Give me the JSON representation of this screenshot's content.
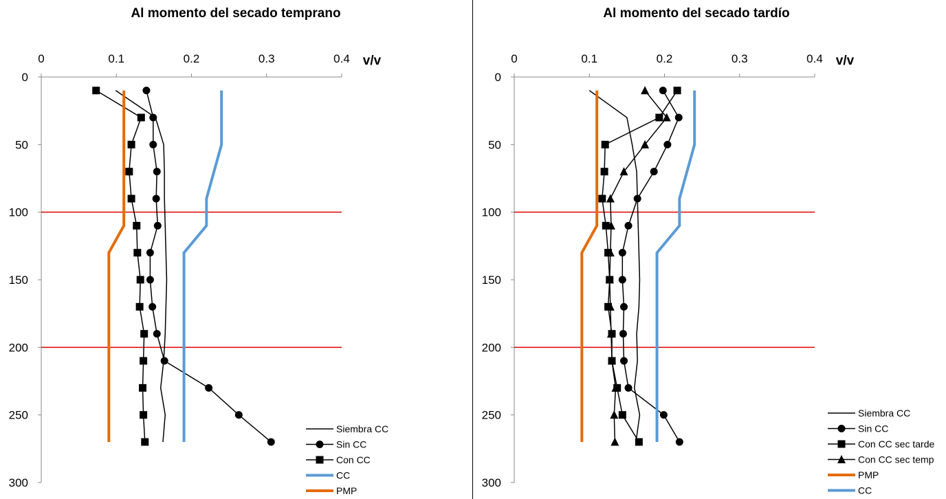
{
  "chart_data": [
    {
      "type": "line",
      "title": "Al momento del secado temprano",
      "x_unit_label": "v/v",
      "xlim": [
        0,
        0.4
      ],
      "ylim": [
        300,
        0
      ],
      "y_inverted": true,
      "x_axis_position": "top",
      "x_ticks": [
        "0",
        "0.1",
        "0.2",
        "0.3",
        "0.4"
      ],
      "y_ticks": [
        "0",
        "50",
        "100",
        "150",
        "200",
        "250",
        "300"
      ],
      "x_tick_values": [
        0,
        0.1,
        0.2,
        0.3,
        0.4
      ],
      "y_tick_values": [
        0,
        50,
        100,
        150,
        200,
        250,
        300
      ],
      "reference_lines_depth": [
        100,
        200
      ],
      "legend_position": "bottom-right",
      "series": [
        {
          "name": "Siembra CC",
          "marker": "none",
          "color": "#000000",
          "points": [
            [
              0.099,
              10
            ],
            [
              0.152,
              30
            ],
            [
              0.163,
              50
            ],
            [
              0.164,
              70
            ],
            [
              0.164,
              90
            ],
            [
              0.165,
              110
            ],
            [
              0.166,
              130
            ],
            [
              0.167,
              150
            ],
            [
              0.166,
              170
            ],
            [
              0.165,
              190
            ],
            [
              0.163,
              210
            ],
            [
              0.159,
              230
            ],
            [
              0.165,
              250
            ],
            [
              0.162,
              270
            ]
          ]
        },
        {
          "name": "Sin CC",
          "marker": "circle",
          "color": "#000000",
          "points": [
            [
              0.14,
              10
            ],
            [
              0.149,
              30
            ],
            [
              0.149,
              50
            ],
            [
              0.154,
              70
            ],
            [
              0.153,
              90
            ],
            [
              0.155,
              110
            ],
            [
              0.145,
              130
            ],
            [
              0.145,
              150
            ],
            [
              0.148,
              170
            ],
            [
              0.154,
              190
            ],
            [
              0.164,
              210
            ],
            [
              0.223,
              230
            ],
            [
              0.263,
              250
            ],
            [
              0.306,
              270
            ]
          ]
        },
        {
          "name": "Con CC",
          "marker": "square",
          "color": "#000000",
          "points": [
            [
              0.073,
              10
            ],
            [
              0.133,
              30
            ],
            [
              0.12,
              50
            ],
            [
              0.117,
              70
            ],
            [
              0.12,
              90
            ],
            [
              0.127,
              110
            ],
            [
              0.128,
              130
            ],
            [
              0.132,
              150
            ],
            [
              0.131,
              170
            ],
            [
              0.137,
              190
            ],
            [
              0.136,
              210
            ],
            [
              0.135,
              230
            ],
            [
              0.136,
              250
            ],
            [
              0.138,
              270
            ]
          ]
        },
        {
          "name": "CC",
          "marker": "none",
          "color": "#5b9bd5",
          "points": [
            [
              0.24,
              10
            ],
            [
              0.24,
              50
            ],
            [
              0.22,
              90
            ],
            [
              0.22,
              110
            ],
            [
              0.19,
              130
            ],
            [
              0.19,
              270
            ]
          ]
        },
        {
          "name": "PMP",
          "marker": "none",
          "color": "#e46c0a",
          "points": [
            [
              0.11,
              10
            ],
            [
              0.11,
              110
            ],
            [
              0.09,
              130
            ],
            [
              0.09,
              270
            ]
          ]
        }
      ],
      "legend": [
        "Siembra CC",
        "Sin CC",
        "Con CC",
        "CC",
        "PMP"
      ]
    },
    {
      "type": "line",
      "title": "Al momento del secado tardío",
      "x_unit_label": "v/v",
      "xlim": [
        0,
        0.4
      ],
      "ylim": [
        300,
        0
      ],
      "y_inverted": true,
      "x_axis_position": "top",
      "x_ticks": [
        "0",
        "0.1",
        "0.2",
        "0.3",
        "0.4"
      ],
      "y_ticks": [
        "0",
        "50",
        "100",
        "150",
        "200",
        "250",
        "300"
      ],
      "x_tick_values": [
        0,
        0.1,
        0.2,
        0.3,
        0.4
      ],
      "y_tick_values": [
        0,
        50,
        100,
        150,
        200,
        250,
        300
      ],
      "reference_lines_depth": [
        100,
        200
      ],
      "legend_position": "bottom-right",
      "series": [
        {
          "name": "Siembra CC",
          "marker": "none",
          "color": "#000000",
          "points": [
            [
              0.1,
              10
            ],
            [
              0.15,
              30
            ],
            [
              0.157,
              50
            ],
            [
              0.163,
              70
            ],
            [
              0.164,
              90
            ],
            [
              0.165,
              110
            ],
            [
              0.166,
              130
            ],
            [
              0.167,
              150
            ],
            [
              0.166,
              170
            ],
            [
              0.163,
              190
            ],
            [
              0.164,
              210
            ],
            [
              0.16,
              230
            ],
            [
              0.167,
              250
            ],
            [
              0.162,
              270
            ]
          ]
        },
        {
          "name": "Sin CC",
          "marker": "circle",
          "color": "#000000",
          "points": [
            [
              0.198,
              10
            ],
            [
              0.219,
              30
            ],
            [
              0.204,
              50
            ],
            [
              0.186,
              70
            ],
            [
              0.164,
              90
            ],
            [
              0.152,
              110
            ],
            [
              0.144,
              130
            ],
            [
              0.144,
              150
            ],
            [
              0.146,
              170
            ],
            [
              0.145,
              190
            ],
            [
              0.146,
              210
            ],
            [
              0.152,
              230
            ],
            [
              0.199,
              250
            ],
            [
              0.22,
              270
            ]
          ]
        },
        {
          "name": "Con CC sec tarde",
          "marker": "square",
          "color": "#000000",
          "points": [
            [
              0.217,
              10
            ],
            [
              0.193,
              30
            ],
            [
              0.121,
              50
            ],
            [
              0.12,
              70
            ],
            [
              0.117,
              90
            ],
            [
              0.122,
              110
            ],
            [
              0.125,
              130
            ],
            [
              0.127,
              150
            ],
            [
              0.125,
              170
            ],
            [
              0.13,
              190
            ],
            [
              0.13,
              210
            ],
            [
              0.137,
              230
            ],
            [
              0.144,
              250
            ],
            [
              0.166,
              270
            ]
          ]
        },
        {
          "name": "Con CC sec temp",
          "marker": "triangle",
          "color": "#000000",
          "points": [
            [
              0.174,
              10
            ],
            [
              0.203,
              30
            ],
            [
              0.174,
              50
            ],
            [
              0.146,
              70
            ],
            [
              0.128,
              90
            ],
            [
              0.129,
              110
            ],
            [
              0.128,
              130
            ],
            [
              0.127,
              150
            ],
            [
              0.128,
              170
            ],
            [
              0.129,
              190
            ],
            [
              0.13,
              210
            ],
            [
              0.135,
              230
            ],
            [
              0.133,
              250
            ],
            [
              0.134,
              270
            ]
          ]
        },
        {
          "name": "PMP",
          "marker": "none",
          "color": "#e46c0a",
          "points": [
            [
              0.11,
              10
            ],
            [
              0.11,
              110
            ],
            [
              0.09,
              130
            ],
            [
              0.09,
              270
            ]
          ]
        },
        {
          "name": "CC",
          "marker": "none",
          "color": "#5b9bd5",
          "points": [
            [
              0.24,
              10
            ],
            [
              0.24,
              50
            ],
            [
              0.22,
              90
            ],
            [
              0.22,
              110
            ],
            [
              0.19,
              130
            ],
            [
              0.19,
              270
            ]
          ]
        }
      ],
      "legend": [
        "Siembra CC",
        "Sin CC",
        "Con CC sec tarde",
        "Con CC sec temp",
        "PMP",
        "CC"
      ]
    }
  ]
}
